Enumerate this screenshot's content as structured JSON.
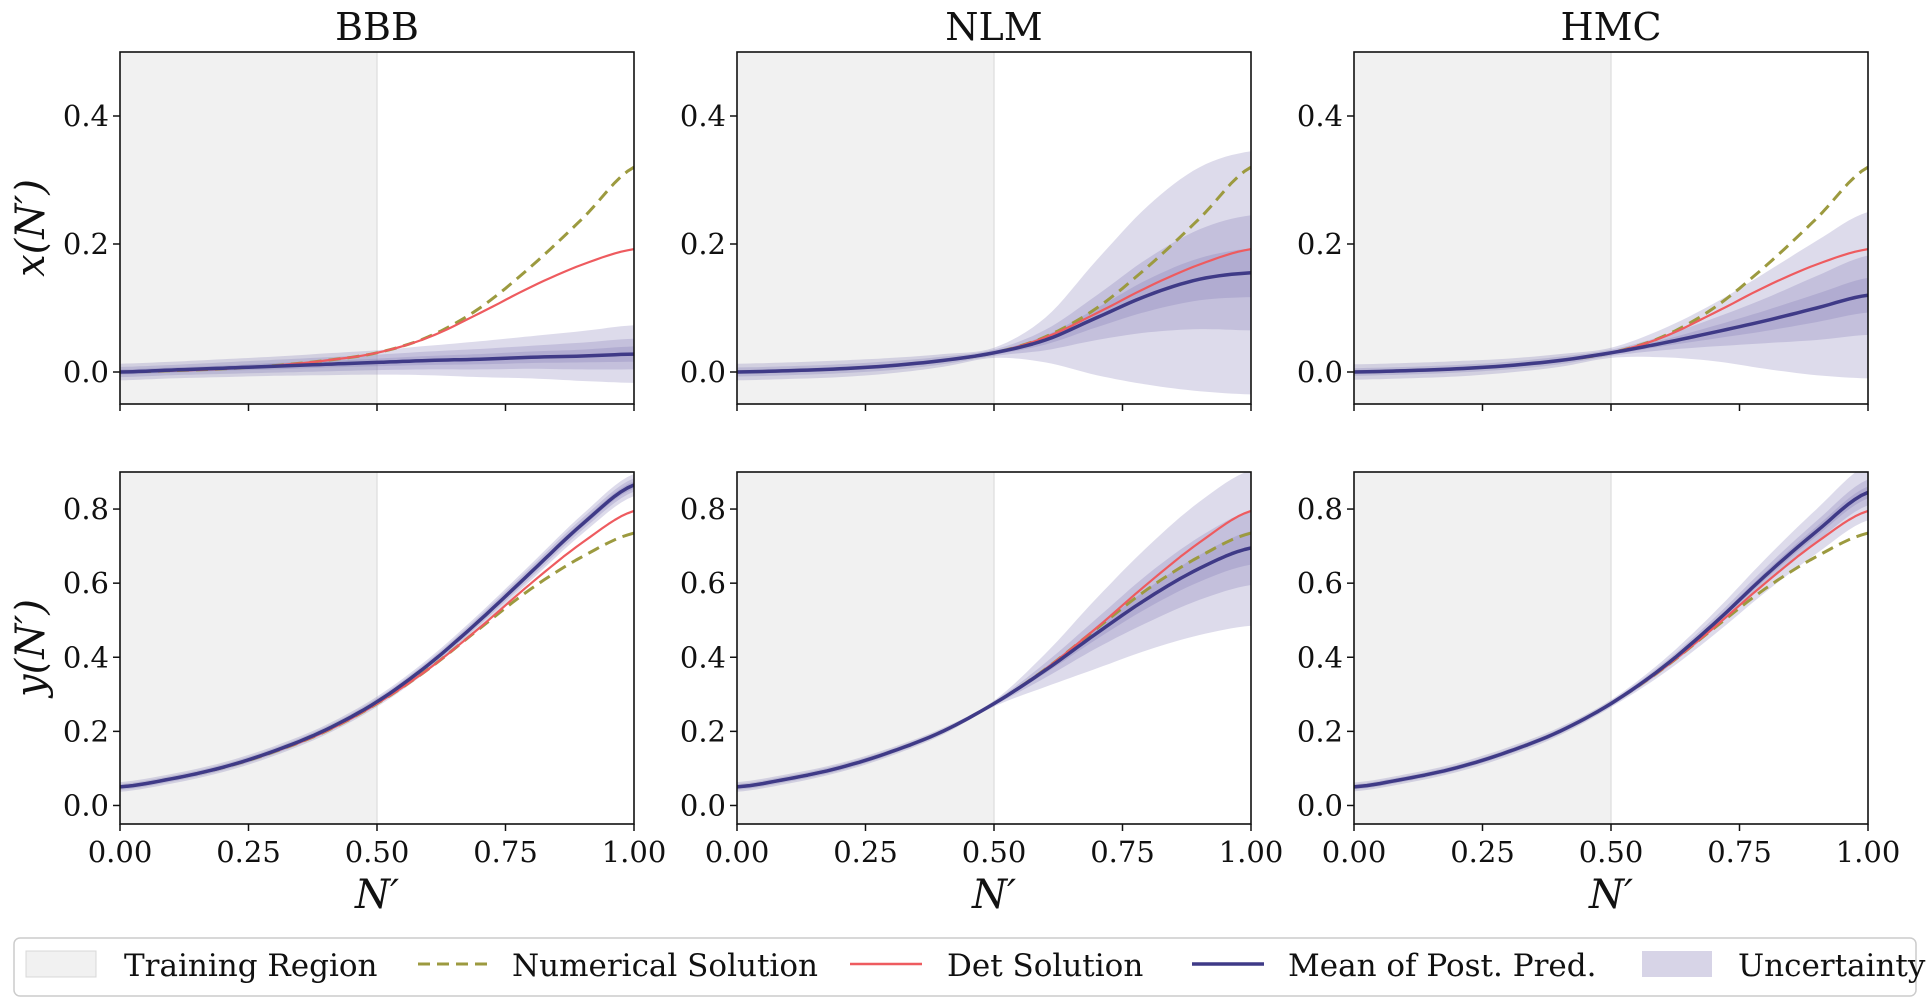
{
  "colors": {
    "training_region": "#f1f1f1",
    "numerical": "#9c9a3f",
    "det": "#ee5b5f",
    "mean": "#3f3a87",
    "uncertainty": "#7c72b0"
  },
  "legend": {
    "training_region": "Training Region",
    "numerical": "Numerical Solution",
    "det": "Det Solution",
    "mean": "Mean of Post. Pred.",
    "uncertainty": "Uncertainty"
  },
  "chart_data": [
    {
      "type": "line",
      "row": 0,
      "col": 0,
      "title": "BBB",
      "ylabel": "x(N′)",
      "xlabel": "",
      "xlim": [
        0,
        1
      ],
      "ylim": [
        -0.05,
        0.5
      ],
      "xticks": [
        0.0,
        0.25,
        0.5,
        0.75,
        1.0
      ],
      "xticklabels": [],
      "yticks": [
        0.0,
        0.2,
        0.4
      ],
      "yticklabels": [
        "0.0",
        "0.2",
        "0.4"
      ],
      "training_region": [
        0,
        0.5
      ],
      "x": [
        0,
        0.1,
        0.2,
        0.3,
        0.4,
        0.5,
        0.6,
        0.7,
        0.8,
        0.9,
        1.0
      ],
      "series": [
        {
          "name": "Numerical Solution",
          "values": [
            0.0,
            0.002,
            0.005,
            0.01,
            0.018,
            0.03,
            0.055,
            0.1,
            0.165,
            0.24,
            0.32
          ]
        },
        {
          "name": "Det Solution",
          "values": [
            0.0,
            0.002,
            0.005,
            0.01,
            0.018,
            0.03,
            0.054,
            0.092,
            0.133,
            0.168,
            0.192
          ]
        },
        {
          "name": "Mean of Post. Pred.",
          "values": [
            0.0,
            0.003,
            0.006,
            0.009,
            0.012,
            0.015,
            0.018,
            0.02,
            0.023,
            0.025,
            0.028
          ]
        }
      ],
      "uncertainty": {
        "band1": [
          0.004,
          0.004,
          0.004,
          0.005,
          0.005,
          0.006,
          0.007,
          0.008,
          0.009,
          0.01,
          0.012
        ],
        "band2": [
          0.008,
          0.008,
          0.009,
          0.01,
          0.011,
          0.012,
          0.014,
          0.016,
          0.018,
          0.021,
          0.024
        ],
        "band3": [
          0.013,
          0.013,
          0.014,
          0.015,
          0.017,
          0.019,
          0.023,
          0.028,
          0.033,
          0.039,
          0.045
        ]
      }
    },
    {
      "type": "line",
      "row": 0,
      "col": 1,
      "title": "NLM",
      "ylabel": "",
      "xlabel": "",
      "xlim": [
        0,
        1
      ],
      "ylim": [
        -0.05,
        0.5
      ],
      "xticks": [
        0.0,
        0.25,
        0.5,
        0.75,
        1.0
      ],
      "xticklabels": [],
      "yticks": [
        0.0,
        0.2,
        0.4
      ],
      "yticklabels": [
        "0.0",
        "0.2",
        "0.4"
      ],
      "training_region": [
        0,
        0.5
      ],
      "x": [
        0,
        0.1,
        0.2,
        0.3,
        0.4,
        0.5,
        0.6,
        0.7,
        0.8,
        0.9,
        1.0
      ],
      "series": [
        {
          "name": "Numerical Solution",
          "values": [
            0.0,
            0.002,
            0.005,
            0.01,
            0.018,
            0.03,
            0.055,
            0.1,
            0.165,
            0.24,
            0.32
          ]
        },
        {
          "name": "Det Solution",
          "values": [
            0.0,
            0.002,
            0.005,
            0.01,
            0.018,
            0.03,
            0.054,
            0.092,
            0.133,
            0.168,
            0.192
          ]
        },
        {
          "name": "Mean of Post. Pred.",
          "values": [
            0.0,
            0.002,
            0.005,
            0.01,
            0.018,
            0.03,
            0.05,
            0.085,
            0.12,
            0.145,
            0.155
          ]
        }
      ],
      "uncertainty": {
        "band1": [
          0.003,
          0.003,
          0.003,
          0.003,
          0.003,
          0.003,
          0.007,
          0.015,
          0.025,
          0.033,
          0.038
        ],
        "band2": [
          0.007,
          0.007,
          0.007,
          0.007,
          0.006,
          0.005,
          0.016,
          0.035,
          0.058,
          0.078,
          0.09
        ],
        "band3": [
          0.013,
          0.013,
          0.013,
          0.012,
          0.01,
          0.008,
          0.035,
          0.09,
          0.14,
          0.175,
          0.19
        ]
      }
    },
    {
      "type": "line",
      "row": 0,
      "col": 2,
      "title": "HMC",
      "ylabel": "",
      "xlabel": "",
      "xlim": [
        0,
        1
      ],
      "ylim": [
        -0.05,
        0.5
      ],
      "xticks": [
        0.0,
        0.25,
        0.5,
        0.75,
        1.0
      ],
      "xticklabels": [],
      "yticks": [
        0.0,
        0.2,
        0.4
      ],
      "yticklabels": [
        "0.0",
        "0.2",
        "0.4"
      ],
      "training_region": [
        0,
        0.5
      ],
      "x": [
        0,
        0.1,
        0.2,
        0.3,
        0.4,
        0.5,
        0.6,
        0.7,
        0.8,
        0.9,
        1.0
      ],
      "series": [
        {
          "name": "Numerical Solution",
          "values": [
            0.0,
            0.002,
            0.005,
            0.01,
            0.018,
            0.03,
            0.055,
            0.1,
            0.165,
            0.24,
            0.32
          ]
        },
        {
          "name": "Det Solution",
          "values": [
            0.0,
            0.002,
            0.005,
            0.01,
            0.018,
            0.03,
            0.054,
            0.092,
            0.133,
            0.168,
            0.192
          ]
        },
        {
          "name": "Mean of Post. Pred.",
          "values": [
            0.0,
            0.002,
            0.005,
            0.01,
            0.018,
            0.03,
            0.045,
            0.062,
            0.08,
            0.1,
            0.12
          ]
        }
      ],
      "uncertainty": {
        "band1": [
          0.003,
          0.003,
          0.003,
          0.003,
          0.003,
          0.003,
          0.005,
          0.01,
          0.016,
          0.022,
          0.027
        ],
        "band2": [
          0.006,
          0.006,
          0.006,
          0.006,
          0.006,
          0.005,
          0.011,
          0.022,
          0.035,
          0.05,
          0.062
        ],
        "band3": [
          0.012,
          0.012,
          0.012,
          0.011,
          0.01,
          0.008,
          0.022,
          0.045,
          0.075,
          0.105,
          0.13
        ]
      }
    },
    {
      "type": "line",
      "row": 1,
      "col": 0,
      "title": "",
      "ylabel": "y(N′)",
      "xlabel": "N′",
      "xlim": [
        0,
        1
      ],
      "ylim": [
        -0.05,
        0.9
      ],
      "xticks": [
        0.0,
        0.25,
        0.5,
        0.75,
        1.0
      ],
      "xticklabels": [
        "0.00",
        "0.25",
        "0.50",
        "0.75",
        "1.00"
      ],
      "yticks": [
        0.0,
        0.2,
        0.4,
        0.6,
        0.8
      ],
      "yticklabels": [
        "0.0",
        "0.2",
        "0.4",
        "0.6",
        "0.8"
      ],
      "training_region": [
        0,
        0.5
      ],
      "x": [
        0,
        0.1,
        0.2,
        0.3,
        0.4,
        0.5,
        0.6,
        0.7,
        0.8,
        0.9,
        1.0
      ],
      "series": [
        {
          "name": "Numerical Solution",
          "values": [
            0.05,
            0.072,
            0.102,
            0.145,
            0.2,
            0.275,
            0.368,
            0.478,
            0.585,
            0.672,
            0.735
          ]
        },
        {
          "name": "Det Solution",
          "values": [
            0.05,
            0.072,
            0.102,
            0.145,
            0.2,
            0.275,
            0.368,
            0.48,
            0.6,
            0.71,
            0.795
          ]
        },
        {
          "name": "Mean of Post. Pred.",
          "values": [
            0.05,
            0.072,
            0.103,
            0.147,
            0.204,
            0.28,
            0.38,
            0.5,
            0.63,
            0.76,
            0.865
          ]
        }
      ],
      "uncertainty": {
        "band1": [
          0.004,
          0.004,
          0.004,
          0.004,
          0.004,
          0.004,
          0.005,
          0.006,
          0.007,
          0.008,
          0.01
        ],
        "band2": [
          0.008,
          0.008,
          0.008,
          0.008,
          0.008,
          0.009,
          0.01,
          0.012,
          0.014,
          0.016,
          0.018
        ],
        "band3": [
          0.013,
          0.013,
          0.013,
          0.013,
          0.013,
          0.014,
          0.016,
          0.019,
          0.022,
          0.026,
          0.03
        ]
      }
    },
    {
      "type": "line",
      "row": 1,
      "col": 1,
      "title": "",
      "ylabel": "",
      "xlabel": "N′",
      "xlim": [
        0,
        1
      ],
      "ylim": [
        -0.05,
        0.9
      ],
      "xticks": [
        0.0,
        0.25,
        0.5,
        0.75,
        1.0
      ],
      "xticklabels": [
        "0.00",
        "0.25",
        "0.50",
        "0.75",
        "1.00"
      ],
      "yticks": [
        0.0,
        0.2,
        0.4,
        0.6,
        0.8
      ],
      "yticklabels": [
        "0.0",
        "0.2",
        "0.4",
        "0.6",
        "0.8"
      ],
      "training_region": [
        0,
        0.5
      ],
      "x": [
        0,
        0.1,
        0.2,
        0.3,
        0.4,
        0.5,
        0.6,
        0.7,
        0.8,
        0.9,
        1.0
      ],
      "series": [
        {
          "name": "Numerical Solution",
          "values": [
            0.05,
            0.072,
            0.102,
            0.145,
            0.2,
            0.275,
            0.368,
            0.478,
            0.585,
            0.672,
            0.735
          ]
        },
        {
          "name": "Det Solution",
          "values": [
            0.05,
            0.072,
            0.102,
            0.145,
            0.2,
            0.275,
            0.368,
            0.48,
            0.6,
            0.71,
            0.795
          ]
        },
        {
          "name": "Mean of Post. Pred.",
          "values": [
            0.05,
            0.072,
            0.102,
            0.145,
            0.2,
            0.275,
            0.365,
            0.465,
            0.56,
            0.64,
            0.695
          ]
        }
      ],
      "uncertainty": {
        "band1": [
          0.004,
          0.004,
          0.004,
          0.004,
          0.004,
          0.004,
          0.008,
          0.016,
          0.026,
          0.036,
          0.045
        ],
        "band2": [
          0.008,
          0.008,
          0.008,
          0.007,
          0.006,
          0.006,
          0.02,
          0.04,
          0.065,
          0.085,
          0.1
        ],
        "band3": [
          0.013,
          0.013,
          0.012,
          0.011,
          0.009,
          0.008,
          0.045,
          0.095,
          0.14,
          0.18,
          0.21
        ]
      }
    },
    {
      "type": "line",
      "row": 1,
      "col": 2,
      "title": "",
      "ylabel": "",
      "xlabel": "N′",
      "xlim": [
        0,
        1
      ],
      "ylim": [
        -0.05,
        0.9
      ],
      "xticks": [
        0.0,
        0.25,
        0.5,
        0.75,
        1.0
      ],
      "xticklabels": [
        "0.00",
        "0.25",
        "0.50",
        "0.75",
        "1.00"
      ],
      "yticks": [
        0.0,
        0.2,
        0.4,
        0.6,
        0.8
      ],
      "yticklabels": [
        "0.0",
        "0.2",
        "0.4",
        "0.6",
        "0.8"
      ],
      "training_region": [
        0,
        0.5
      ],
      "x": [
        0,
        0.1,
        0.2,
        0.3,
        0.4,
        0.5,
        0.6,
        0.7,
        0.8,
        0.9,
        1.0
      ],
      "series": [
        {
          "name": "Numerical Solution",
          "values": [
            0.05,
            0.072,
            0.102,
            0.145,
            0.2,
            0.275,
            0.368,
            0.478,
            0.585,
            0.672,
            0.735
          ]
        },
        {
          "name": "Det Solution",
          "values": [
            0.05,
            0.072,
            0.102,
            0.145,
            0.2,
            0.275,
            0.368,
            0.48,
            0.6,
            0.71,
            0.795
          ]
        },
        {
          "name": "Mean of Post. Pred.",
          "values": [
            0.05,
            0.072,
            0.102,
            0.145,
            0.2,
            0.275,
            0.372,
            0.49,
            0.62,
            0.74,
            0.845
          ]
        }
      ],
      "uncertainty": {
        "band1": [
          0.004,
          0.004,
          0.004,
          0.004,
          0.004,
          0.004,
          0.005,
          0.007,
          0.01,
          0.013,
          0.016
        ],
        "band2": [
          0.007,
          0.007,
          0.007,
          0.007,
          0.007,
          0.007,
          0.01,
          0.015,
          0.021,
          0.028,
          0.035
        ],
        "band3": [
          0.012,
          0.012,
          0.012,
          0.012,
          0.011,
          0.01,
          0.018,
          0.03,
          0.045,
          0.06,
          0.075
        ]
      }
    }
  ]
}
